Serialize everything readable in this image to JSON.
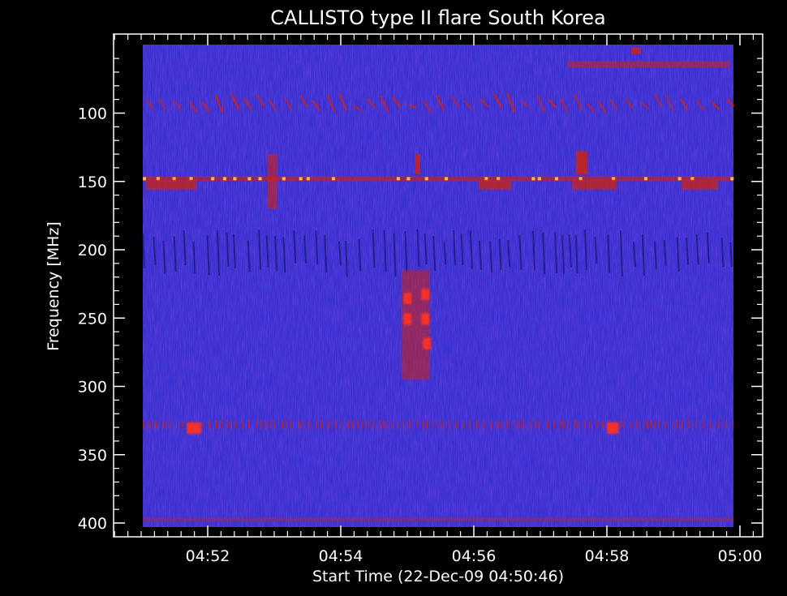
{
  "chart_data": {
    "type": "heatmap",
    "title": "CALLISTO type II flare South Korea",
    "xlabel": "Start Time (22-Dec-09 04:50:46)",
    "ylabel": "Frequency [MHz]",
    "x_tick_labels": [
      "04:52",
      "04:54",
      "04:56",
      "04:58",
      "05:00"
    ],
    "y_tick_labels": [
      "100",
      "150",
      "200",
      "250",
      "300",
      "350",
      "400"
    ],
    "y_ticks": [
      100,
      150,
      200,
      250,
      300,
      350,
      400
    ],
    "ylim": [
      45,
      405
    ],
    "y_inverted": true,
    "colors": {
      "background": "#3030d8",
      "burst": "#d02010",
      "hot": "#ffd040",
      "frame": "#000000",
      "axis": "#ffffff"
    },
    "features": [
      {
        "name": "type II burst lane",
        "t_start": "04:54:55",
        "t_end": "04:55:20",
        "freq_min": 215,
        "freq_max": 295
      },
      {
        "name": "interference line",
        "freq": 148
      },
      {
        "name": "interference band",
        "freq": 328
      },
      {
        "name": "drifting low-frequency structures",
        "freq_min": 60,
        "freq_max": 100
      }
    ]
  }
}
